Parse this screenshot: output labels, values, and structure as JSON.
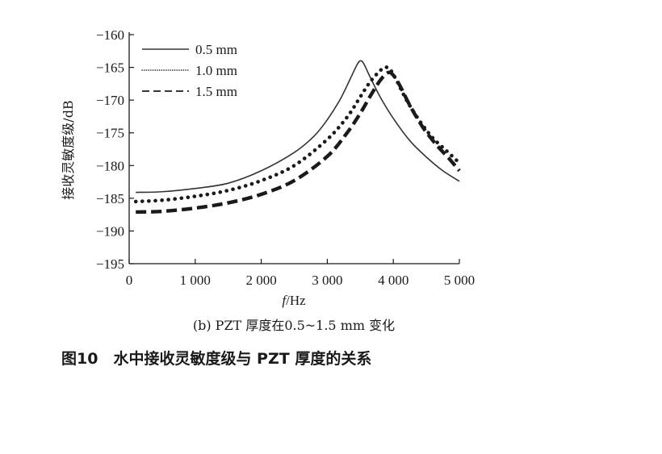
{
  "figure_caption": "图10　水中接收灵敏度级与 PZT 厚度的关系",
  "chart_data": {
    "type": "line",
    "subcaption": "(b) PZT 厚度在0.5~1.5 mm 变化",
    "xlabel_italic": "f",
    "xlabel_unit": "/Hz",
    "ylabel": "接收灵敏度级/dB",
    "xlim": [
      0,
      5000
    ],
    "ylim": [
      -195,
      -160
    ],
    "x_ticks": [
      0,
      1000,
      2000,
      3000,
      4000,
      5000
    ],
    "x_tick_labels": [
      "0",
      "1 000",
      "2 000",
      "3 000",
      "4 000",
      "5 000"
    ],
    "y_ticks": [
      -160,
      -165,
      -170,
      -175,
      -180,
      -185,
      -190,
      -195
    ],
    "y_tick_labels": [
      "−160",
      "−165",
      "−170",
      "−175",
      "−180",
      "−185",
      "−190",
      "−195"
    ],
    "grid": false,
    "legend_position": "top-left",
    "series": [
      {
        "name": "0.5 mm",
        "style": "solid",
        "color": "#333333",
        "x": [
          100,
          500,
          1000,
          1500,
          2000,
          2500,
          2800,
          3000,
          3200,
          3350,
          3450,
          3500,
          3550,
          3650,
          3800,
          4000,
          4250,
          4500,
          4750,
          5000
        ],
        "y": [
          -184.1,
          -184.0,
          -183.5,
          -182.7,
          -180.8,
          -178.0,
          -175.5,
          -173.0,
          -169.8,
          -166.7,
          -164.6,
          -164.0,
          -164.4,
          -166.5,
          -169.5,
          -172.8,
          -176.2,
          -178.7,
          -180.8,
          -182.4
        ]
      },
      {
        "name": "1.0 mm",
        "style": "dotted",
        "color": "#1a1a1a",
        "x": [
          100,
          500,
          1000,
          1500,
          2000,
          2500,
          3000,
          3300,
          3500,
          3650,
          3800,
          3880,
          3950,
          4050,
          4200,
          4400,
          4600,
          4800,
          5000
        ],
        "y": [
          -185.5,
          -185.3,
          -184.7,
          -183.8,
          -182.3,
          -180.0,
          -176.0,
          -172.6,
          -169.5,
          -167.2,
          -165.5,
          -165.0,
          -165.3,
          -167.0,
          -170.0,
          -173.2,
          -175.8,
          -177.7,
          -179.6
        ]
      },
      {
        "name": "1.5 mm",
        "style": "dashed",
        "color": "#1a1a1a",
        "x": [
          100,
          500,
          1000,
          1500,
          2000,
          2500,
          3000,
          3300,
          3500,
          3650,
          3800,
          3920,
          4000,
          4100,
          4250,
          4450,
          4650,
          4850,
          5000
        ],
        "y": [
          -187.1,
          -187.0,
          -186.5,
          -185.7,
          -184.4,
          -182.3,
          -178.6,
          -175.0,
          -172.0,
          -169.4,
          -167.0,
          -165.8,
          -166.2,
          -167.8,
          -170.8,
          -174.2,
          -176.8,
          -179.0,
          -180.8
        ]
      }
    ]
  }
}
